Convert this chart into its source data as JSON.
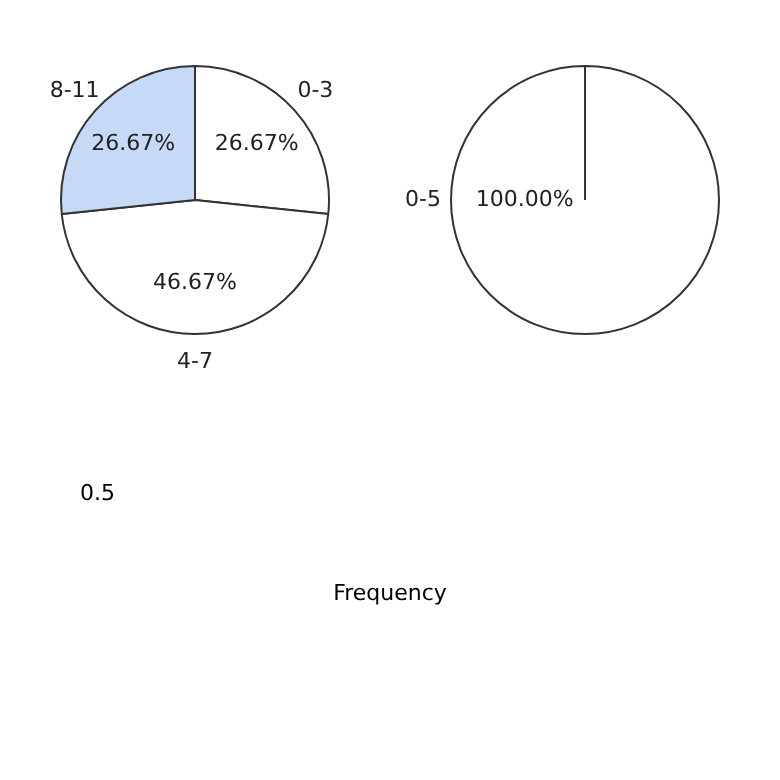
{
  "chart_data": [
    {
      "type": "pie",
      "categories": [
        "0-3",
        "4-7",
        "8-11"
      ],
      "values": [
        26.67,
        46.67,
        26.67
      ],
      "colors": [
        "#ffffff",
        "#ffffff",
        "#c6d9f7"
      ],
      "value_labels": [
        "26.67%",
        "46.67%",
        "26.67%"
      ]
    },
    {
      "type": "pie",
      "categories": [
        "0-5"
      ],
      "values": [
        100
      ],
      "colors": [
        "#ffffff"
      ],
      "value_labels": [
        "100.00%"
      ]
    },
    {
      "type": "other",
      "xlabel": "Frequency",
      "annotations": [
        "0.5"
      ]
    }
  ]
}
